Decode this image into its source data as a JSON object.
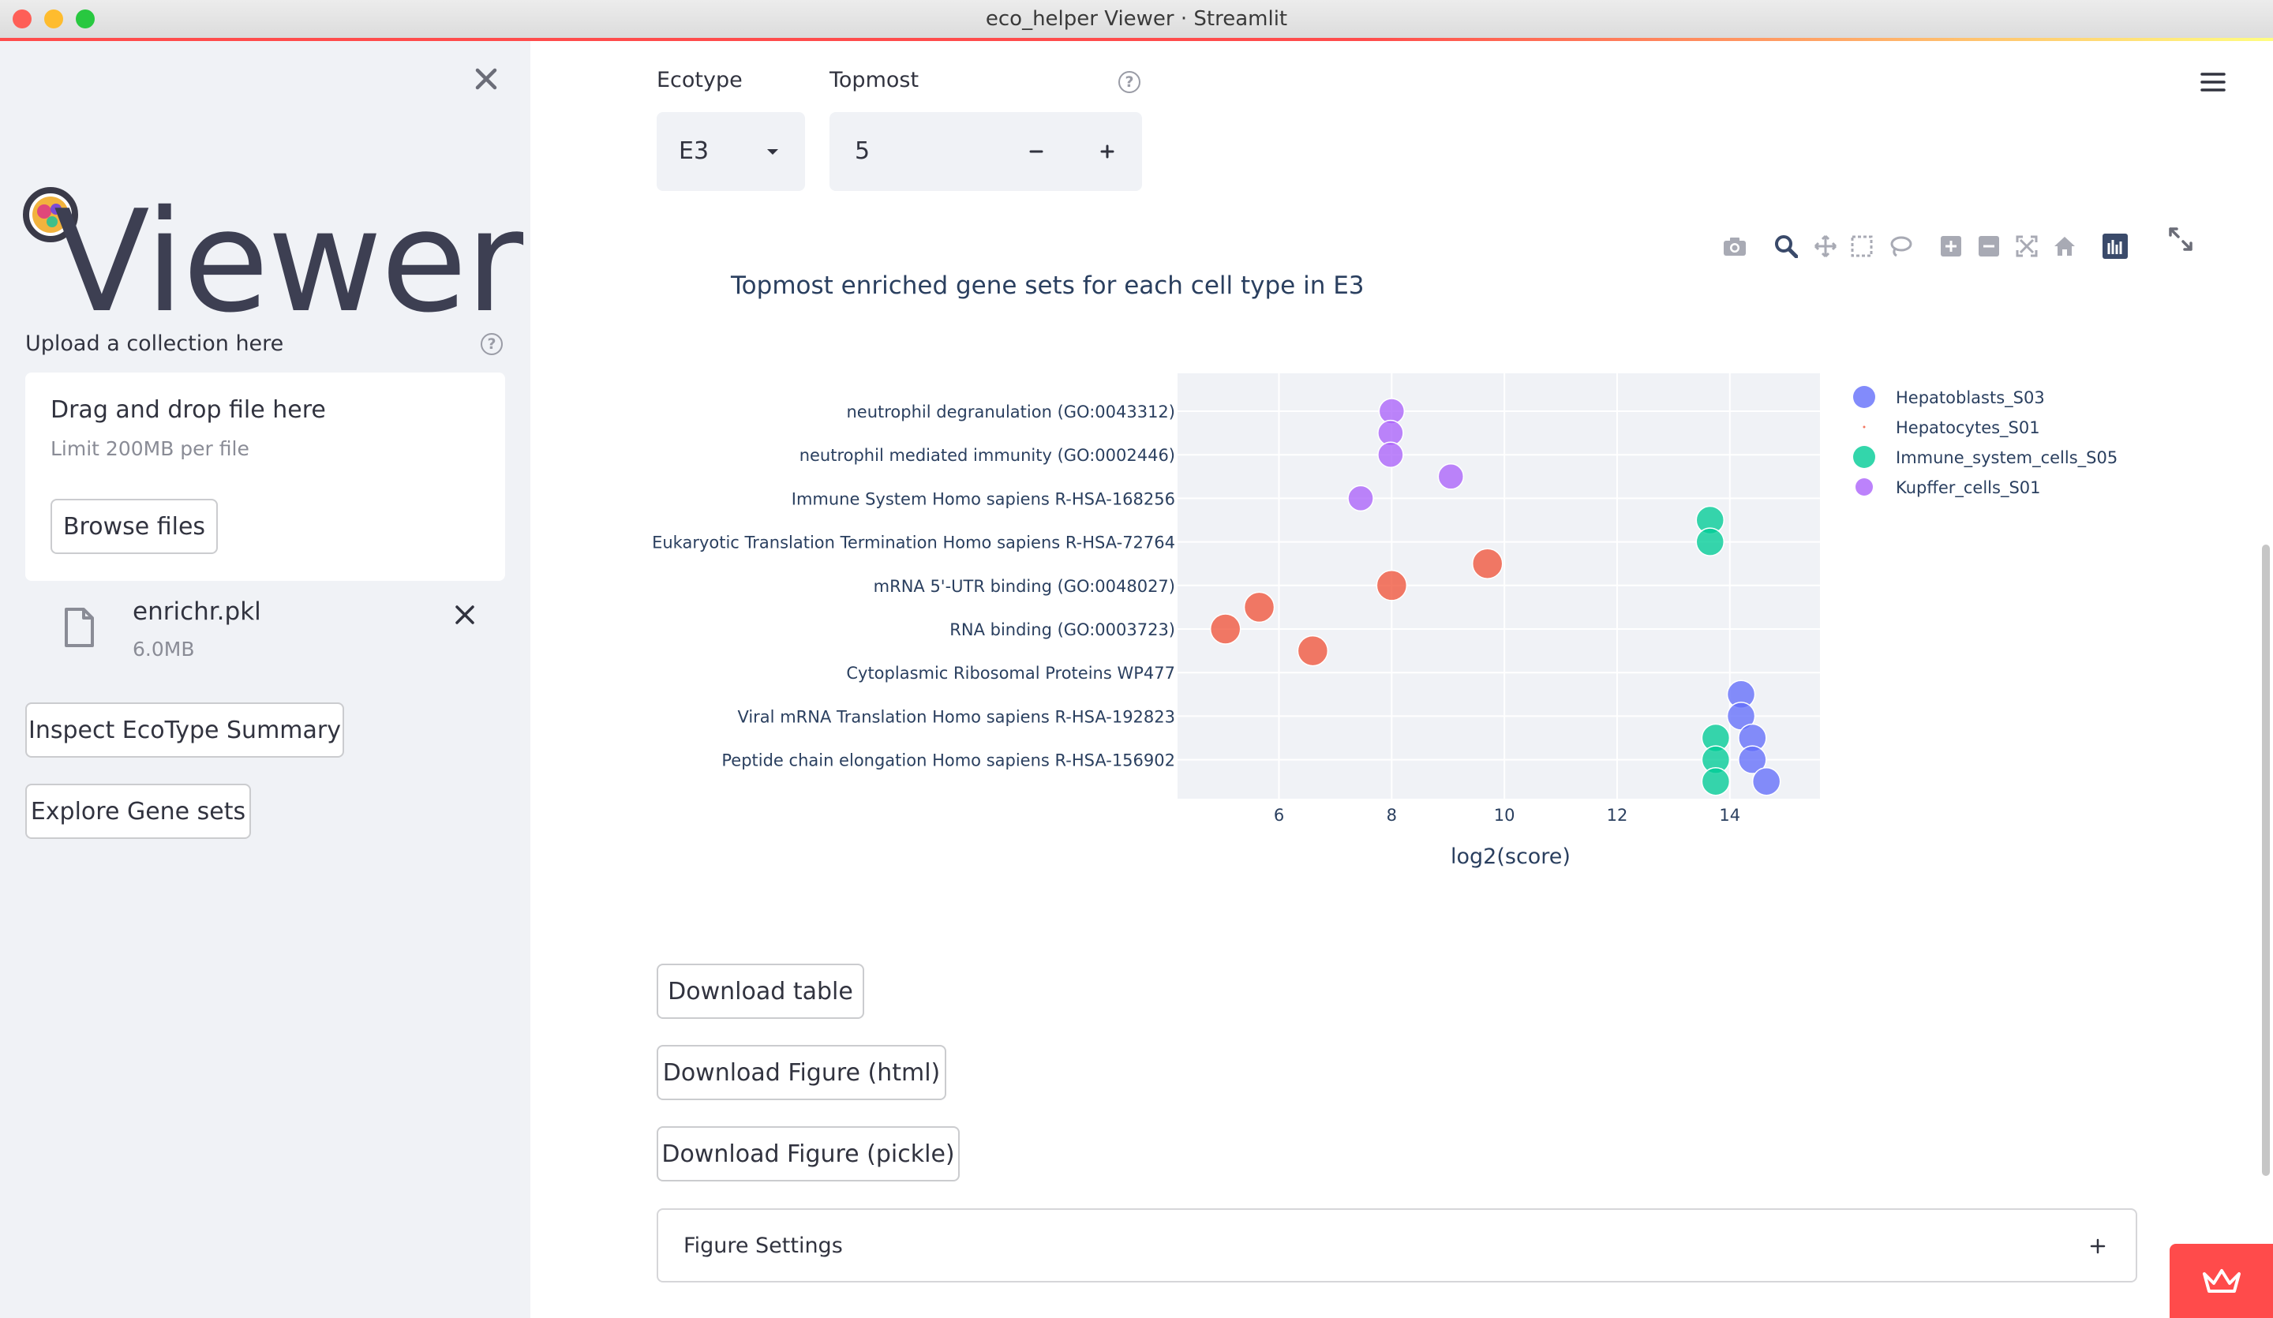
{
  "window": {
    "title": "eco_helper Viewer · Streamlit"
  },
  "sidebar": {
    "logo_text": "Viewer",
    "upload_label": "Upload a collection here",
    "dropzone": {
      "title": "Drag and drop file here",
      "limit": "Limit 200MB per file",
      "browse_label": "Browse files"
    },
    "file": {
      "name": "enrichr.pkl",
      "size": "6.0MB"
    },
    "inspect_button": "Inspect EcoType Summary",
    "explore_button": "Explore Gene sets"
  },
  "controls": {
    "ecotype_label": "Ecotype",
    "ecotype_value": "E3",
    "topmost_label": "Topmost",
    "topmost_value": "5"
  },
  "chart_data": {
    "type": "scatter",
    "title": "Topmost enriched gene sets for each cell type in E3",
    "xlabel": "log2(score)",
    "ylabel": "",
    "xlim": [
      4.2,
      15.6
    ],
    "x_ticks": [
      6,
      8,
      10,
      12,
      14
    ],
    "grid": true,
    "legend_position": "right",
    "categories": [
      "neutrophil degranulation (GO:0043312)",
      "neutrophil mediated immunity (GO:0002446)",
      "Immune System Homo sapiens R-HSA-168256",
      "Eukaryotic Translation Termination Homo sapiens R-HSA-72764",
      "mRNA 5'-UTR binding (GO:0048027)",
      "RNA binding (GO:0003723)",
      "Cytoplasmic Ribosomal Proteins WP477",
      "Viral mRNA Translation Homo sapiens R-HSA-192823",
      "Peptide chain elongation Homo sapiens R-HSA-156902"
    ],
    "series": [
      {
        "name": "Hepatoblasts_S03",
        "color": "#636efa",
        "size": "large",
        "points": [
          [
            14.2,
            6.5
          ],
          [
            14.2,
            7.0
          ],
          [
            14.4,
            7.5
          ],
          [
            14.4,
            8.0
          ],
          [
            14.65,
            8.5
          ]
        ]
      },
      {
        "name": "Hepatocytes_S01",
        "color": "#ef553b",
        "size": "tiny",
        "points": [
          [
            9.7,
            3.5
          ],
          [
            8.0,
            4.0
          ],
          [
            5.65,
            4.5
          ],
          [
            5.05,
            5.0
          ],
          [
            6.6,
            5.5
          ]
        ]
      },
      {
        "name": "Immune_system_cells_S05",
        "color": "#00cc96",
        "size": "large",
        "points": [
          [
            13.65,
            2.5
          ],
          [
            13.65,
            3.0
          ],
          [
            13.75,
            7.5
          ],
          [
            13.75,
            8.0
          ],
          [
            13.75,
            8.5
          ]
        ]
      },
      {
        "name": "Kupffer_cells_S01",
        "color": "#ab63fa",
        "size": "medium",
        "points": [
          [
            8.0,
            0.0
          ],
          [
            7.98,
            0.5
          ],
          [
            7.98,
            1.0
          ],
          [
            9.05,
            1.5
          ],
          [
            7.45,
            2.0
          ]
        ]
      }
    ]
  },
  "downloads": {
    "table": "Download table",
    "figure_html": "Download Figure (html)",
    "figure_pickle": "Download Figure (pickle)"
  },
  "settings": {
    "label": "Figure Settings"
  },
  "icons": [
    "close-icon",
    "file-icon",
    "help-icon",
    "chevron-down-icon",
    "minus-icon",
    "plus-icon",
    "camera-icon",
    "zoom-icon",
    "pan-icon",
    "box-select-icon",
    "lasso-icon",
    "zoom-in-icon",
    "zoom-out-icon",
    "autoscale-icon",
    "home-icon",
    "plotly-logo-icon",
    "fullscreen-icon",
    "menu-icon",
    "streamlit-crown-icon"
  ]
}
